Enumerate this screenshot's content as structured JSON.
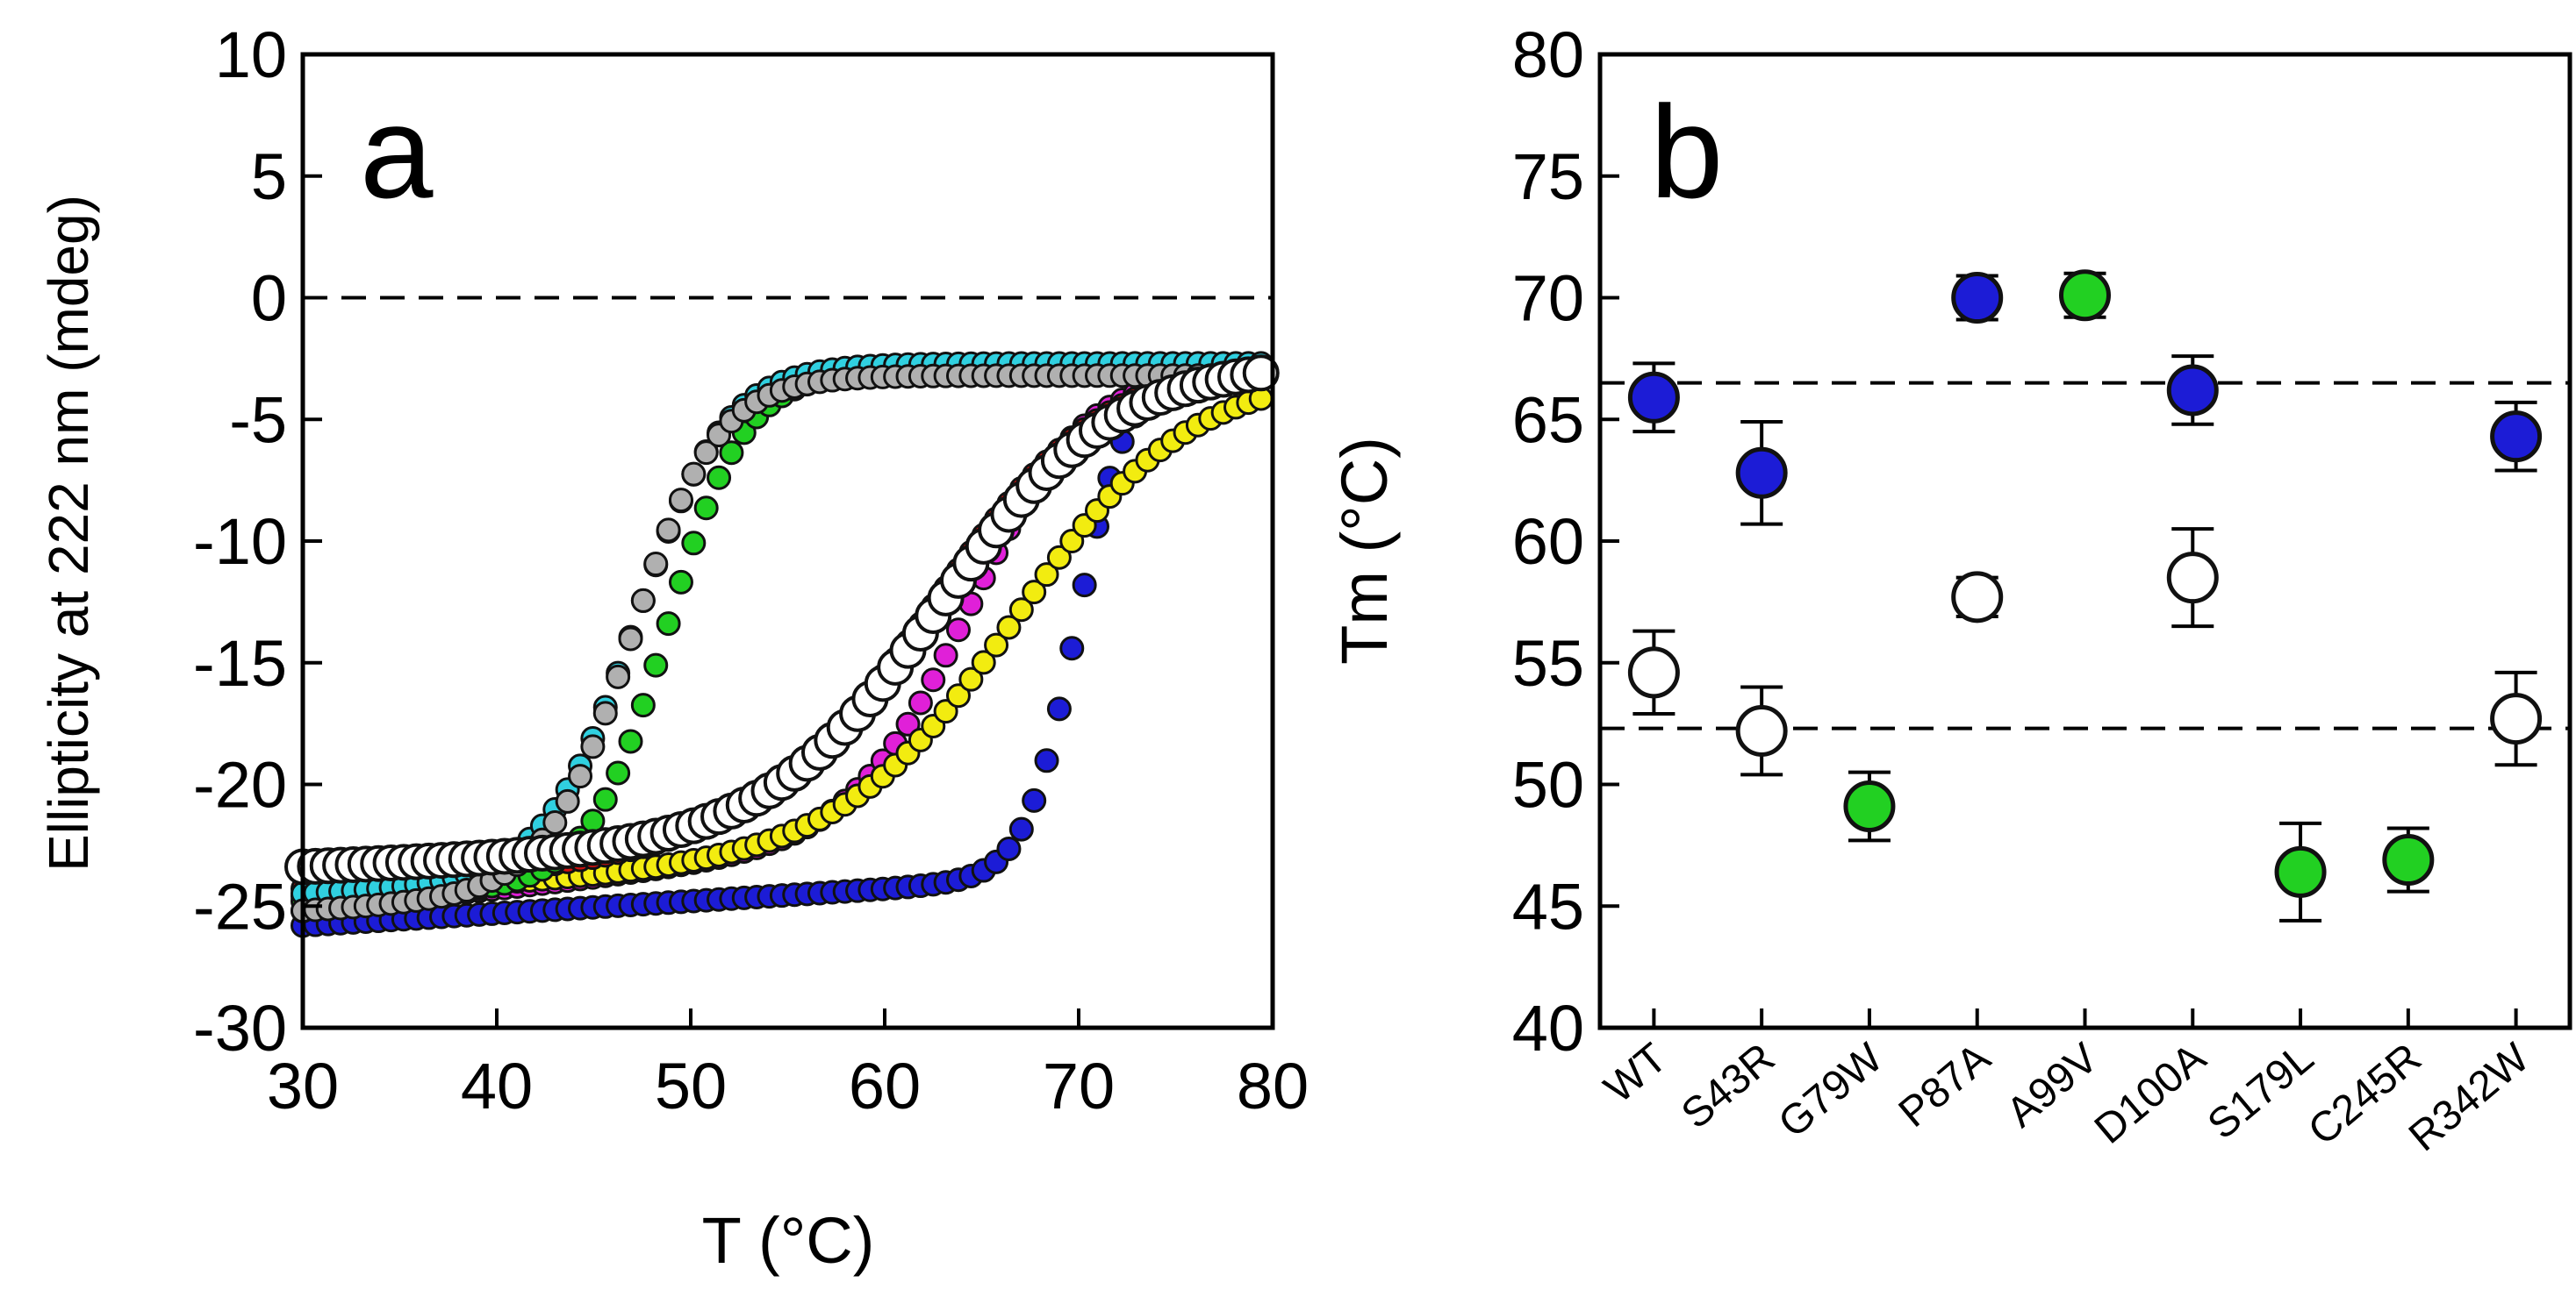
{
  "chart_data": [
    {
      "panel": "a",
      "type": "scatter",
      "panel_label": "a",
      "xlabel": "T (°C)",
      "ylabel": "Ellipticity at 222 nm (mdeg)",
      "xlim": [
        30,
        80
      ],
      "ylim": [
        -30,
        10
      ],
      "xticks": [
        30,
        40,
        50,
        60,
        70,
        80
      ],
      "yticks": [
        10,
        5,
        0,
        -5,
        -10,
        -15,
        -20,
        -25,
        -30
      ],
      "reference_line": {
        "y": 0,
        "style": "dashed"
      },
      "series": [
        {
          "name": "blue",
          "color": "#1c1cd6",
          "params": {
            "y0": -25.8,
            "y0slope": 0.05,
            "tm": 69.9,
            "w": 1.3,
            "ytop": -3.0
          }
        },
        {
          "name": "magenta",
          "color": "#e020d8",
          "params": {
            "y0": -25.2,
            "y0slope": 0.09,
            "tm": 64.5,
            "w": 3.0,
            "ytop": -2.9
          }
        },
        {
          "name": "yellow",
          "color": "#f2ec10",
          "params": {
            "y0": -24.6,
            "y0slope": 0.05,
            "tm": 67.0,
            "w": 4.5,
            "ytop": -3.0
          }
        },
        {
          "name": "red",
          "color": "#d01010",
          "params": {
            "y0": -24.3,
            "y0slope": 0.06,
            "tm": 62.8,
            "w": 4.5,
            "ytop": -2.3
          }
        },
        {
          "name": "green",
          "color": "#22d022",
          "params": {
            "y0": -24.8,
            "y0slope": 0.04,
            "tm": 48.8,
            "w": 2.0,
            "ytop": -3.0
          }
        },
        {
          "name": "cyan",
          "color": "#30d0e0",
          "params": {
            "y0": -24.5,
            "y0slope": 0.04,
            "tm": 47.2,
            "w": 2.3,
            "ytop": -2.7
          }
        },
        {
          "name": "gray",
          "color": "#b0b0b0",
          "params": {
            "y0": -25.2,
            "y0slope": 0.05,
            "tm": 47.0,
            "w": 2.2,
            "ytop": -3.2
          }
        },
        {
          "name": "white",
          "color": "#ffffff",
          "params": {
            "y0": -23.4,
            "y0slope": 0.03,
            "tm": 63.0,
            "w": 4.5,
            "ytop": -2.6
          }
        }
      ]
    },
    {
      "panel": "b",
      "type": "scatter",
      "panel_label": "b",
      "xlabel": "",
      "ylabel": "Tm (°C)",
      "ylim": [
        40,
        80
      ],
      "yticks": [
        80,
        75,
        70,
        65,
        60,
        55,
        50,
        45,
        40
      ],
      "categories": [
        "WT",
        "S43R",
        "G79W",
        "P87A",
        "A99V",
        "D100A",
        "S179L",
        "C245R",
        "R342W"
      ],
      "reference_lines": [
        {
          "y": 66.5,
          "style": "dashed"
        },
        {
          "y": 52.3,
          "style": "dashed"
        }
      ],
      "series": [
        {
          "name": "blue",
          "color": "#1c1cd6",
          "points": [
            {
              "category": "WT",
              "value": 65.9,
              "error": 1.4
            },
            {
              "category": "S43R",
              "value": 62.8,
              "error": 2.1
            },
            {
              "category": "P87A",
              "value": 70.0,
              "error": 0.9
            },
            {
              "category": "D100A",
              "value": 66.2,
              "error": 1.4
            },
            {
              "category": "R342W",
              "value": 64.3,
              "error": 1.4
            }
          ]
        },
        {
          "name": "green",
          "color": "#22d022",
          "points": [
            {
              "category": "G79W",
              "value": 49.1,
              "error": 1.4
            },
            {
              "category": "A99V",
              "value": 70.1,
              "error": 0.9
            },
            {
              "category": "S179L",
              "value": 46.4,
              "error": 2.0
            },
            {
              "category": "C245R",
              "value": 46.9,
              "error": 1.3
            }
          ]
        },
        {
          "name": "white",
          "color": "#ffffff",
          "points": [
            {
              "category": "WT",
              "value": 54.6,
              "error": 1.7
            },
            {
              "category": "S43R",
              "value": 52.2,
              "error": 1.8
            },
            {
              "category": "P87A",
              "value": 57.7,
              "error": 0.8
            },
            {
              "category": "D100A",
              "value": 58.5,
              "error": 2.0
            },
            {
              "category": "R342W",
              "value": 52.7,
              "error": 1.9
            }
          ]
        }
      ]
    }
  ]
}
